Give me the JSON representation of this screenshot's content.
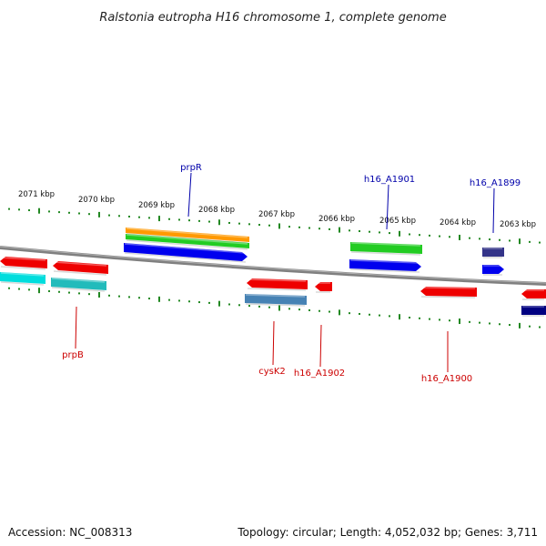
{
  "title": "Ralstonia eutropha H16 chromosome 1, complete genome",
  "footer": {
    "accession": "Accession: NC_008313",
    "summary": "Topology: circular; Length: 4,052,032 bp; Genes: 3,711"
  },
  "ticks": [
    "2071 kbp",
    "2070 kbp",
    "2069 kbp",
    "2068 kbp",
    "2067 kbp",
    "2066 kbp",
    "2065 kbp",
    "2064 kbp",
    "2063 kbp"
  ],
  "gene_labels": [
    {
      "name": "prpR",
      "color": "#0000aa"
    },
    {
      "name": "h16_A1901",
      "color": "#0000aa"
    },
    {
      "name": "h16_A1899",
      "color": "#0000aa"
    },
    {
      "name": "prpB",
      "color": "#cc0000"
    },
    {
      "name": "cysK2",
      "color": "#cc0000"
    },
    {
      "name": "h16_A1902",
      "color": "#cc0000"
    },
    {
      "name": "h16_A1900",
      "color": "#cc0000"
    }
  ],
  "colors": {
    "forward_gene": "#0000ee",
    "reverse_gene": "#ee0000",
    "cog_green": "#22cc22",
    "cog_orange": "#ff9900",
    "cog_cyan": "#00dddd",
    "cog_teal": "#22bbbb",
    "cog_steel": "#4682b4",
    "cog_navy": "#000080",
    "cog_slate": "#333388",
    "tick": "#228822",
    "backbone": "#888888"
  }
}
